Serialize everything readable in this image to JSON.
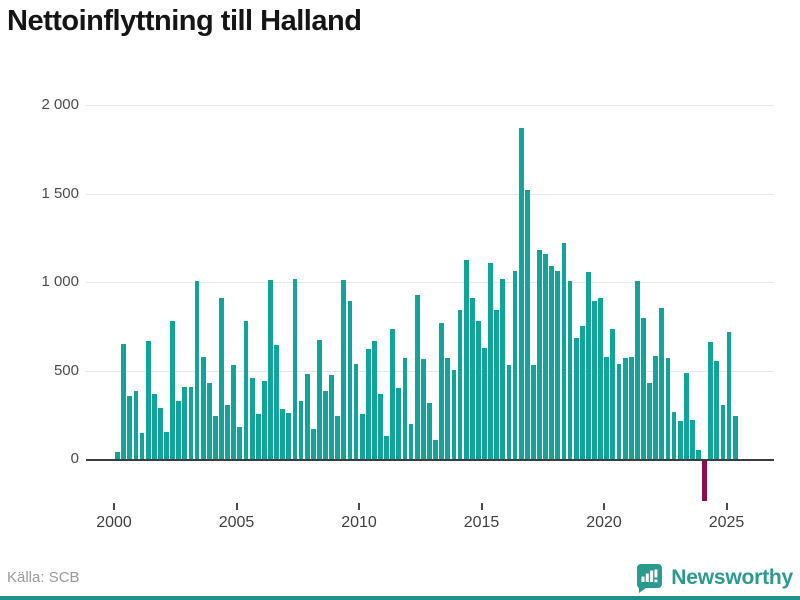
{
  "title": "Nettoinflyttning till Halland",
  "source": {
    "label": "Källa: SCB"
  },
  "brand": {
    "name": "Newsworthy",
    "icon": "newsworthy-speech-bubble-chart-icon",
    "color": "#2b9a8e"
  },
  "chart_data": {
    "type": "bar",
    "title": "Nettoinflyttning till Halland",
    "xlabel": "",
    "ylabel": "",
    "grid": "horizontal",
    "legend": "none",
    "bar_color": "#12a49b",
    "negative_bar_color": "#8e0e4e",
    "ylim": [
      -300,
      2000
    ],
    "yticks": [
      0,
      500,
      1000,
      1500,
      2000
    ],
    "ytick_labels": [
      "0",
      "500",
      "1 000",
      "1 500",
      "2 000"
    ],
    "xticks": [
      2000,
      2005,
      2010,
      2015,
      2020,
      2025
    ],
    "xtick_labels": [
      "2000",
      "2005",
      "2010",
      "2015",
      "2020",
      "2025"
    ],
    "x": [
      "2000 Q2",
      "2000 Q3",
      "2000 Q4",
      "2001 Q1",
      "2001 Q2",
      "2001 Q3",
      "2001 Q4",
      "2002 Q1",
      "2002 Q2",
      "2002 Q3",
      "2002 Q4",
      "2003 Q1",
      "2003 Q2",
      "2003 Q3",
      "2003 Q4",
      "2004 Q1",
      "2004 Q2",
      "2004 Q3",
      "2004 Q4",
      "2005 Q1",
      "2005 Q2",
      "2005 Q3",
      "2005 Q4",
      "2006 Q1",
      "2006 Q2",
      "2006 Q3",
      "2006 Q4",
      "2007 Q1",
      "2007 Q2",
      "2007 Q3",
      "2007 Q4",
      "2008 Q1",
      "2008 Q2",
      "2008 Q3",
      "2008 Q4",
      "2009 Q1",
      "2009 Q2",
      "2009 Q3",
      "2009 Q4",
      "2010 Q1",
      "2010 Q2",
      "2010 Q3",
      "2010 Q4",
      "2011 Q1",
      "2011 Q2",
      "2011 Q3",
      "2011 Q4",
      "2012 Q1",
      "2012 Q2",
      "2012 Q3",
      "2012 Q4",
      "2013 Q1",
      "2013 Q2",
      "2013 Q3",
      "2013 Q4",
      "2014 Q1",
      "2014 Q2",
      "2014 Q3",
      "2014 Q4",
      "2015 Q1",
      "2015 Q2",
      "2015 Q3",
      "2015 Q4",
      "2016 Q1",
      "2016 Q2",
      "2016 Q3",
      "2016 Q4",
      "2017 Q1",
      "2017 Q2",
      "2017 Q3",
      "2017 Q4",
      "2018 Q1",
      "2018 Q2",
      "2018 Q3",
      "2018 Q4",
      "2019 Q1",
      "2019 Q2",
      "2019 Q3",
      "2019 Q4",
      "2020 Q1",
      "2020 Q2",
      "2020 Q3",
      "2020 Q4",
      "2021 Q1",
      "2021 Q2",
      "2021 Q3",
      "2021 Q4",
      "2022 Q1",
      "2022 Q2",
      "2022 Q3",
      "2022 Q4",
      "2023 Q1",
      "2023 Q2",
      "2023 Q3",
      "2023 Q4",
      "2024 Q1",
      "2024 Q2",
      "2024 Q3",
      "2024 Q4",
      "2025 Q1",
      "2025 Q2",
      "2025 Q3"
    ],
    "series": [
      {
        "name": "Nettoinflyttning",
        "values": [
          40,
          650,
          360,
          385,
          150,
          670,
          370,
          290,
          155,
          780,
          330,
          410,
          410,
          1005,
          580,
          430,
          245,
          910,
          305,
          530,
          180,
          780,
          460,
          255,
          440,
          1010,
          645,
          285,
          260,
          1015,
          330,
          480,
          170,
          675,
          385,
          475,
          245,
          1010,
          895,
          540,
          255,
          625,
          665,
          370,
          130,
          735,
          400,
          570,
          200,
          930,
          565,
          320,
          110,
          770,
          570,
          505,
          845,
          1125,
          910,
          780,
          630,
          1110,
          845,
          1020,
          535,
          1065,
          1870,
          1520,
          535,
          1180,
          1160,
          1090,
          1065,
          1220,
          1005,
          685,
          750,
          1060,
          895,
          910,
          580,
          735,
          540,
          570,
          575,
          1005,
          800,
          430,
          585,
          855,
          570,
          265,
          215,
          485,
          220,
          55,
          -230,
          660,
          555,
          305,
          720,
          245
        ]
      }
    ]
  }
}
